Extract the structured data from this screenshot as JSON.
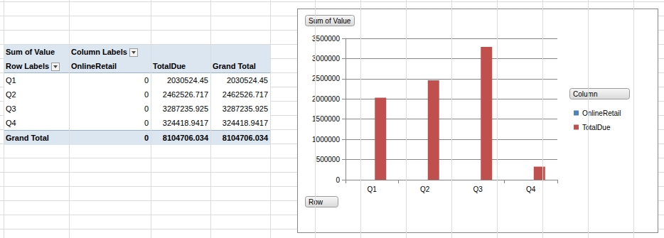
{
  "chart_data": {
    "type": "bar",
    "title": "Sum of Value",
    "xlabel": "Row",
    "legend_title": "Column",
    "categories": [
      "Q1",
      "Q2",
      "Q3",
      "Q4"
    ],
    "series": [
      {
        "name": "OnlineRetail",
        "color": "#4f81bd",
        "values": [
          0,
          0,
          0,
          0
        ]
      },
      {
        "name": "TotalDue",
        "color": "#c0504d",
        "values": [
          2030524.45,
          2462526.717,
          3287235.925,
          324418.9417
        ]
      }
    ],
    "ylim": [
      0,
      3500000
    ],
    "yticks": [
      0,
      500000,
      1000000,
      1500000,
      2000000,
      2500000,
      3000000,
      3500000
    ],
    "grid": true,
    "legend": "right"
  },
  "table": {
    "corner": "Sum of Value",
    "column_header": "Column Labels",
    "row_header": "Row Labels",
    "columns": [
      "OnlineRetail",
      "TotalDue",
      "Grand Total"
    ],
    "rows": [
      {
        "label": "Q1",
        "values": [
          0,
          2030524.45,
          2030524.45
        ]
      },
      {
        "label": "Q2",
        "values": [
          0,
          2462526.717,
          2462526.717
        ]
      },
      {
        "label": "Q3",
        "values": [
          0,
          3287235.925,
          3287235.925
        ]
      },
      {
        "label": "Q4",
        "values": [
          0,
          324418.9417,
          324418.9417
        ]
      }
    ],
    "total": {
      "label": "Grand Total",
      "values": [
        0,
        8104706.034,
        8104706.034
      ]
    }
  }
}
